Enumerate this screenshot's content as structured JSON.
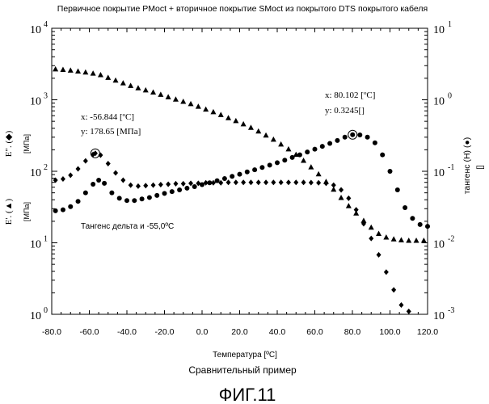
{
  "chart_data": {
    "type": "scatter",
    "title": "Первичное покрытие PMoct + вторичное покрытие SMoct из покрытого DTS покрытого кабеля",
    "xlabel": "Температура [ºC]",
    "subtitle": "Сравнительный пример",
    "figure_label": "ФИГ.11",
    "annotation": "Тангенс дельта и -55,0ºC",
    "xlim": [
      -80,
      120
    ],
    "x_ticks": [
      "-80.0",
      "-60.0",
      "-40.0",
      "-20.0",
      "0.0",
      "20.0",
      "40.0",
      "60.0",
      "80.0",
      "100.0",
      "120.0"
    ],
    "y_left": {
      "scale": "log",
      "lim": [
        1,
        10000
      ],
      "tick_bases": [
        "10",
        "10",
        "10",
        "10",
        "10"
      ],
      "tick_exps": [
        "0",
        "1",
        "2",
        "3",
        "4"
      ],
      "label_e2": "E\". (◆)",
      "label_e1": "E'. (▲)",
      "unit_top": "[MПа]",
      "unit_bottom": "[MПа]"
    },
    "y_right": {
      "scale": "log",
      "lim": [
        0.001,
        10
      ],
      "tick_bases": [
        "10",
        "10",
        "10",
        "10",
        "10"
      ],
      "tick_exps": [
        "1",
        "0",
        "-1",
        "-2",
        "-3"
      ],
      "label": "тангенс (H) (●)",
      "unit": "[]"
    },
    "callouts": [
      {
        "x_text": "x: -56.844 [ºC]",
        "y_text": "y: 178.65 [MПа]",
        "x": -56.844,
        "y": 178.65,
        "axis": "left"
      },
      {
        "x_text": "x: 80.102 [ºC]",
        "y_text": "y: 0.3245[]",
        "x": 80.102,
        "y": 0.3245,
        "axis": "right"
      }
    ],
    "series": [
      {
        "name": "E'",
        "marker": "triangle",
        "axis": "left",
        "x": [
          -78,
          -74,
          -70,
          -66,
          -62,
          -58,
          -54,
          -50,
          -46,
          -42,
          -38,
          -34,
          -30,
          -26,
          -22,
          -18,
          -14,
          -10,
          -6,
          -2,
          2,
          6,
          10,
          14,
          18,
          22,
          26,
          30,
          34,
          38,
          42,
          46,
          50,
          54,
          58,
          62,
          66,
          70,
          74,
          78,
          82,
          86,
          90,
          94,
          98,
          102,
          106,
          110,
          114,
          118
        ],
        "values": [
          2700,
          2650,
          2590,
          2520,
          2440,
          2350,
          2240,
          2050,
          1880,
          1720,
          1580,
          1470,
          1370,
          1280,
          1190,
          1100,
          1020,
          950,
          880,
          810,
          740,
          680,
          620,
          560,
          510,
          460,
          410,
          365,
          320,
          280,
          240,
          205,
          172,
          142,
          115,
          92,
          72,
          56,
          43,
          33,
          26,
          20.5,
          16.5,
          13.5,
          12,
          11.3,
          11,
          10.8,
          10.8,
          10.8
        ]
      },
      {
        "name": "E\"",
        "marker": "diamond",
        "axis": "left",
        "x": [
          -78,
          -74,
          -70,
          -66,
          -62,
          -58,
          -56.8,
          -54,
          -50,
          -46,
          -42,
          -38,
          -34,
          -30,
          -26,
          -22,
          -18,
          -14,
          -10,
          -6,
          -2,
          2,
          6,
          10,
          14,
          18,
          22,
          26,
          30,
          34,
          38,
          42,
          46,
          50,
          54,
          58,
          62,
          66,
          70,
          74,
          78,
          82,
          86,
          90,
          94,
          98,
          102,
          106,
          110
        ],
        "values": [
          75,
          78,
          88,
          108,
          140,
          172,
          178.65,
          168,
          128,
          95,
          75,
          64,
          62,
          63,
          64,
          65,
          66,
          67,
          67,
          68,
          68,
          69,
          69,
          69,
          70,
          70,
          70,
          70,
          70,
          70,
          70,
          70,
          70,
          70,
          70,
          69.5,
          69,
          68,
          64,
          55,
          42,
          29,
          18.5,
          11.5,
          6.8,
          3.9,
          2.2,
          1.35,
          1.1
        ]
      },
      {
        "name": "тангенс (H)",
        "marker": "circle",
        "axis": "right",
        "x": [
          -78,
          -74,
          -70,
          -66,
          -62,
          -58,
          -55,
          -52,
          -48,
          -44,
          -40,
          -36,
          -32,
          -28,
          -24,
          -20,
          -16,
          -12,
          -8,
          -4,
          0,
          4,
          8,
          12,
          16,
          20,
          24,
          28,
          32,
          36,
          40,
          44,
          48,
          52,
          56,
          60,
          64,
          68,
          72,
          76,
          80.1,
          84,
          88,
          92,
          96,
          100,
          104,
          108,
          112,
          116,
          120
        ],
        "values": [
          0.028,
          0.029,
          0.032,
          0.038,
          0.05,
          0.066,
          0.075,
          0.068,
          0.05,
          0.042,
          0.039,
          0.039,
          0.041,
          0.043,
          0.046,
          0.049,
          0.052,
          0.055,
          0.058,
          0.061,
          0.065,
          0.069,
          0.074,
          0.079,
          0.085,
          0.091,
          0.098,
          0.105,
          0.113,
          0.122,
          0.132,
          0.143,
          0.156,
          0.17,
          0.186,
          0.204,
          0.223,
          0.245,
          0.27,
          0.3,
          0.3245,
          0.322,
          0.3,
          0.25,
          0.17,
          0.1,
          0.055,
          0.031,
          0.022,
          0.018,
          0.017
        ]
      }
    ]
  }
}
